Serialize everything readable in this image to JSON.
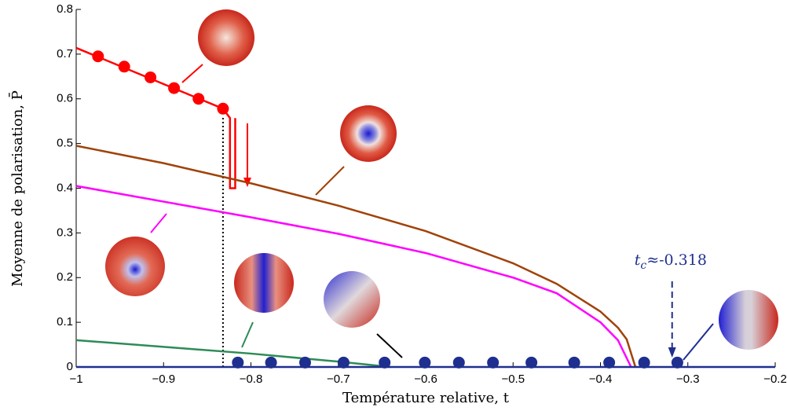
{
  "chart_data": {
    "type": "line",
    "x_label": "Température relative, t",
    "y_label": "Moyenne de polarisation, P̄",
    "xlim": [
      -1,
      -0.2
    ],
    "ylim": [
      0,
      0.8
    ],
    "xticks": [
      {
        "value": -1,
        "label": "−1"
      },
      {
        "value": -0.9,
        "label": "−0.9"
      },
      {
        "value": -0.8,
        "label": "−0.8"
      },
      {
        "value": -0.7,
        "label": "−0.7"
      },
      {
        "value": -0.6,
        "label": "−0.6"
      },
      {
        "value": -0.5,
        "label": "−0.5"
      },
      {
        "value": -0.4,
        "label": "−0.4"
      },
      {
        "value": -0.3,
        "label": "−0.3"
      },
      {
        "value": -0.2,
        "label": "−0.2"
      }
    ],
    "yticks": [
      0,
      0.1,
      0.2,
      0.3,
      0.4,
      0.5,
      0.6,
      0.7,
      0.8
    ],
    "series": [
      {
        "color": "#ff0000",
        "x": [
          -1,
          -0.832,
          -0.824,
          -0.824,
          -0.818,
          -0.818
        ],
        "values": [
          0.714,
          0.578,
          0.557,
          0.4,
          0.4,
          0.557
        ]
      },
      {
        "color": "#ff0000",
        "marker": true,
        "x": [
          -0.975,
          -0.945,
          -0.915,
          -0.888,
          -0.86,
          -0.832
        ],
        "values": [
          0.695,
          0.672,
          0.648,
          0.624,
          0.6,
          0.578
        ]
      },
      {
        "color": "#a0430a",
        "x": [
          -1,
          -0.9,
          -0.8,
          -0.7,
          -0.6,
          -0.5,
          -0.45,
          -0.4,
          -0.38,
          -0.37,
          -0.36
        ],
        "values": [
          0.495,
          0.456,
          0.411,
          0.361,
          0.304,
          0.232,
          0.186,
          0.124,
          0.088,
          0.062,
          0
        ]
      },
      {
        "color": "#ff00ff",
        "x": [
          -1,
          -0.9,
          -0.8,
          -0.7,
          -0.6,
          -0.5,
          -0.45,
          -0.4,
          -0.38,
          -0.365
        ],
        "values": [
          0.405,
          0.37,
          0.335,
          0.298,
          0.255,
          0.2,
          0.165,
          0.1,
          0.06,
          0
        ]
      },
      {
        "color": "#2e8b57",
        "x": [
          -1,
          -0.9,
          -0.8,
          -0.7,
          -0.64
        ],
        "values": [
          0.06,
          0.045,
          0.03,
          0.012,
          0
        ]
      },
      {
        "color": "#1f2f8f",
        "x": [
          -1,
          -0.2
        ],
        "values": [
          0,
          0
        ]
      },
      {
        "color": "#1f2f8f",
        "marker": true,
        "x": [
          -0.815,
          -0.777,
          -0.738,
          -0.694,
          -0.647,
          -0.601,
          -0.562,
          -0.523,
          -0.479,
          -0.43,
          -0.39,
          -0.35,
          -0.312
        ],
        "values": [
          0.01,
          0.01,
          0.01,
          0.01,
          0.01,
          0.01,
          0.01,
          0.01,
          0.01,
          0.01,
          0.01,
          0.01,
          0.01
        ]
      }
    ],
    "annotation": {
      "t": "t",
      "sub": "c",
      "rest": "≈-0.318",
      "x": -0.318
    }
  }
}
